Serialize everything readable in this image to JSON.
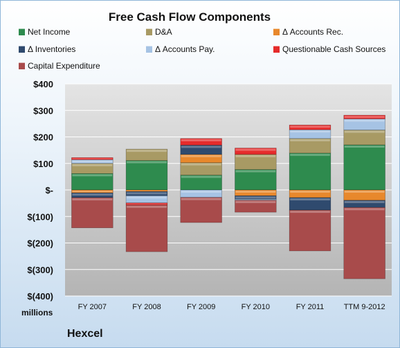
{
  "chart_data": {
    "type": "bar",
    "title": "Free Cash Flow Components",
    "company": "Hexcel",
    "units_label": "millions",
    "categories": [
      "FY 2007",
      "FY 2008",
      "FY 2009",
      "FY 2010",
      "FY 2011",
      "TTM 9-2012"
    ],
    "y_ticks": [
      "$400",
      "$300",
      "$200",
      "$100",
      "$-",
      "$(100)",
      "$(200)",
      "$(300)",
      "$(400)"
    ],
    "ylim": [
      -400,
      400
    ],
    "stacked": true,
    "legend_position": "top",
    "series": [
      {
        "name": "Net Income",
        "color": "#2e8b4e",
        "values": [
          62,
          111,
          56,
          77,
          139,
          170
        ]
      },
      {
        "name": "D&A",
        "color": "#a89a64",
        "values": [
          38,
          43,
          47,
          57,
          55,
          56
        ]
      },
      {
        "name": "Δ Accounts Rec.",
        "color": "#e8882c",
        "values": [
          -11,
          -6,
          31,
          -22,
          -29,
          -39
        ]
      },
      {
        "name": "Δ Inventories",
        "color": "#2f4a6e",
        "values": [
          -18,
          -16,
          35,
          -13,
          -47,
          -27
        ]
      },
      {
        "name": "Δ Accounts Pay.",
        "color": "#a6c3e4",
        "values": [
          14,
          -27,
          -28,
          -4,
          33,
          42
        ]
      },
      {
        "name": "Questionable Cash Sources",
        "color": "#e52b2b",
        "values": [
          8,
          -8,
          25,
          24,
          18,
          14
        ]
      },
      {
        "name": "Capital Expenditure",
        "color": "#a84b4b",
        "values": [
          -114,
          -176,
          -95,
          -45,
          -154,
          -269
        ]
      }
    ]
  }
}
